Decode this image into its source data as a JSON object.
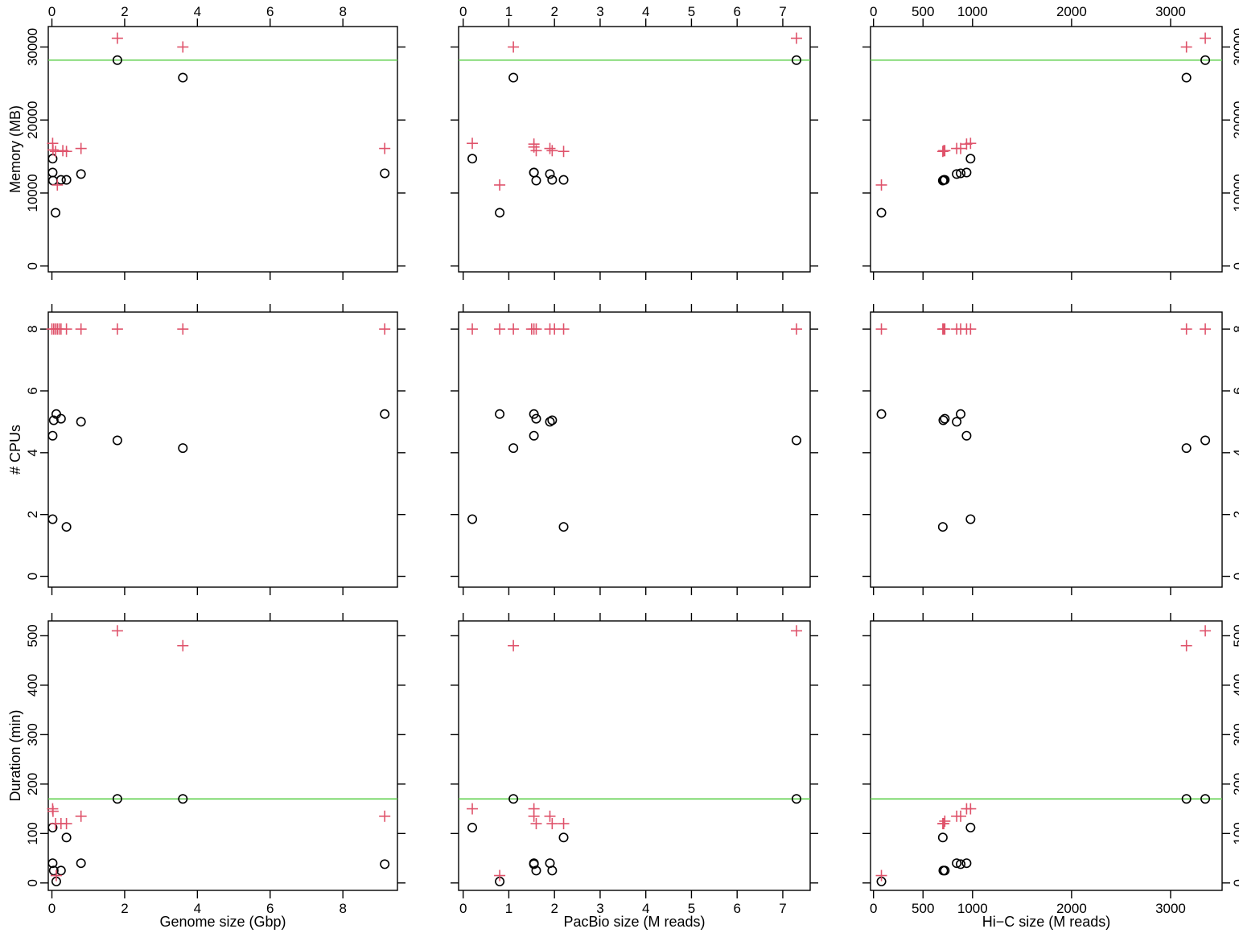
{
  "colors": {
    "circle": "#000000",
    "plus": "#DF536B",
    "refline": "#61D04F"
  },
  "chart_data": [
    {
      "type": "scatter",
      "row": "memory",
      "col": "genome",
      "ylabel": "Memory (MB)",
      "xlabel": "",
      "xticks": [
        0,
        2,
        4,
        6,
        8
      ],
      "yticks": [
        0,
        10000,
        20000,
        30000
      ],
      "xlim": [
        -0.1,
        9.5
      ],
      "ylim": [
        -800,
        32800
      ],
      "hline": 28200,
      "series": [
        {
          "marker": "circle",
          "x": [
            0.02,
            0.02,
            0.03,
            0.1,
            0.25,
            0.4,
            0.8,
            1.8,
            3.6,
            9.15
          ],
          "y": [
            14700,
            12800,
            11700,
            7300,
            11800,
            11800,
            12600,
            28200,
            25800,
            12700
          ]
        },
        {
          "marker": "plus",
          "x": [
            0.02,
            0.03,
            0.1,
            0.15,
            0.3,
            0.4,
            0.8,
            1.8,
            3.6,
            9.15
          ],
          "y": [
            16800,
            15900,
            15700,
            11100,
            15800,
            15700,
            16100,
            31200,
            30000,
            16100
          ]
        }
      ]
    },
    {
      "type": "scatter",
      "row": "memory",
      "col": "pacbio",
      "ylabel": "",
      "xlabel": "",
      "xticks": [
        0,
        1,
        2,
        3,
        4,
        5,
        6,
        7
      ],
      "yticks": [
        0,
        10000,
        20000,
        30000
      ],
      "xlim": [
        -0.1,
        7.6
      ],
      "ylim": [
        -800,
        32800
      ],
      "hline": 28200,
      "series": [
        {
          "marker": "circle",
          "x": [
            0.2,
            0.8,
            1.1,
            1.55,
            1.55,
            1.6,
            1.9,
            1.95,
            2.2,
            7.3
          ],
          "y": [
            14700,
            7300,
            25800,
            12800,
            12800,
            11700,
            12600,
            11800,
            11800,
            28200
          ]
        },
        {
          "marker": "plus",
          "x": [
            0.2,
            0.8,
            1.1,
            1.55,
            1.55,
            1.6,
            1.9,
            1.95,
            2.2,
            7.3
          ],
          "y": [
            16800,
            11100,
            30000,
            16700,
            16300,
            15800,
            16100,
            15800,
            15700,
            31200
          ]
        }
      ]
    },
    {
      "type": "scatter",
      "row": "memory",
      "col": "hic",
      "ylabel": "",
      "xlabel": "",
      "xticks": [
        0,
        500,
        1000,
        2000,
        3000
      ],
      "yticks": [
        0,
        10000,
        20000,
        30000
      ],
      "xlim": [
        -30,
        3520
      ],
      "ylim": [
        -800,
        32800
      ],
      "hline": 28200,
      "series": [
        {
          "marker": "circle",
          "x": [
            80,
            700,
            710,
            720,
            840,
            880,
            940,
            980,
            3160,
            3350
          ],
          "y": [
            7300,
            11700,
            11800,
            11800,
            12600,
            12700,
            12800,
            14700,
            25800,
            28200
          ]
        },
        {
          "marker": "plus",
          "x": [
            80,
            700,
            710,
            720,
            840,
            880,
            940,
            980,
            3160,
            3350
          ],
          "y": [
            11100,
            15700,
            15800,
            15800,
            16100,
            16100,
            16700,
            16800,
            30000,
            31200
          ]
        }
      ]
    },
    {
      "type": "scatter",
      "row": "cpus",
      "col": "genome",
      "ylabel": "# CPUs",
      "xlabel": "",
      "xticks": [
        0,
        2,
        4,
        6,
        8
      ],
      "yticks": [
        0,
        2,
        4,
        6,
        8
      ],
      "xlim": [
        -0.1,
        9.5
      ],
      "ylim": [
        -0.35,
        8.55
      ],
      "series": [
        {
          "marker": "circle",
          "x": [
            0.02,
            0.02,
            0.05,
            0.12,
            0.25,
            0.4,
            0.8,
            1.8,
            3.6,
            9.15
          ],
          "y": [
            1.85,
            4.55,
            5.05,
            5.25,
            5.1,
            1.6,
            5.0,
            4.4,
            4.15,
            5.25
          ]
        },
        {
          "marker": "plus",
          "x": [
            0.0,
            0.05,
            0.1,
            0.15,
            0.2,
            0.25,
            0.4,
            0.8,
            1.8,
            3.6,
            9.15
          ],
          "y": [
            8,
            8,
            8,
            8,
            8,
            8,
            8,
            8,
            8,
            8,
            8
          ]
        }
      ]
    },
    {
      "type": "scatter",
      "row": "cpus",
      "col": "pacbio",
      "ylabel": "",
      "xlabel": "",
      "xticks": [
        0,
        1,
        2,
        3,
        4,
        5,
        6,
        7
      ],
      "yticks": [
        0,
        2,
        4,
        6,
        8
      ],
      "xlim": [
        -0.1,
        7.6
      ],
      "ylim": [
        -0.35,
        8.55
      ],
      "series": [
        {
          "marker": "circle",
          "x": [
            0.2,
            0.8,
            1.1,
            1.55,
            1.55,
            1.6,
            1.9,
            1.95,
            2.2,
            7.3
          ],
          "y": [
            1.85,
            5.25,
            4.15,
            5.25,
            4.55,
            5.1,
            5.0,
            5.05,
            1.6,
            4.4
          ]
        },
        {
          "marker": "plus",
          "x": [
            0.2,
            0.8,
            1.1,
            1.5,
            1.55,
            1.6,
            1.9,
            2.0,
            2.2,
            7.3
          ],
          "y": [
            8,
            8,
            8,
            8,
            8,
            8,
            8,
            8,
            8,
            8
          ]
        }
      ]
    },
    {
      "type": "scatter",
      "row": "cpus",
      "col": "hic",
      "ylabel": "",
      "xlabel": "",
      "xticks": [
        0,
        500,
        1000,
        2000,
        3000
      ],
      "yticks": [
        0,
        2,
        4,
        6,
        8
      ],
      "xlim": [
        -30,
        3520
      ],
      "ylim": [
        -0.35,
        8.55
      ],
      "series": [
        {
          "marker": "circle",
          "x": [
            80,
            700,
            705,
            720,
            840,
            880,
            940,
            980,
            3160,
            3350
          ],
          "y": [
            5.25,
            1.6,
            5.05,
            5.1,
            5.0,
            5.25,
            4.55,
            1.85,
            4.15,
            4.4
          ]
        },
        {
          "marker": "plus",
          "x": [
            80,
            700,
            710,
            720,
            840,
            880,
            940,
            980,
            3160,
            3350
          ],
          "y": [
            8,
            8,
            8,
            8,
            8,
            8,
            8,
            8,
            8,
            8
          ]
        }
      ]
    },
    {
      "type": "scatter",
      "row": "duration",
      "col": "genome",
      "ylabel": "Duration (min)",
      "xlabel": "Genome size (Gbp)",
      "xticks": [
        0,
        2,
        4,
        6,
        8
      ],
      "yticks": [
        0,
        100,
        200,
        300,
        400,
        500
      ],
      "xlim": [
        -0.1,
        9.5
      ],
      "ylim": [
        -15,
        530
      ],
      "hline": 170,
      "series": [
        {
          "marker": "circle",
          "x": [
            0.02,
            0.02,
            0.05,
            0.12,
            0.25,
            0.4,
            0.8,
            1.8,
            3.6,
            9.15
          ],
          "y": [
            112,
            40,
            25,
            3,
            25,
            92,
            40,
            170,
            170,
            38
          ]
        },
        {
          "marker": "plus",
          "x": [
            0.02,
            0.03,
            0.1,
            0.12,
            0.25,
            0.4,
            0.8,
            1.8,
            3.6,
            9.15
          ],
          "y": [
            150,
            145,
            120,
            15,
            120,
            120,
            135,
            510,
            480,
            135
          ]
        }
      ]
    },
    {
      "type": "scatter",
      "row": "duration",
      "col": "pacbio",
      "ylabel": "",
      "xlabel": "PacBio size (M reads)",
      "xticks": [
        0,
        1,
        2,
        3,
        4,
        5,
        6,
        7
      ],
      "yticks": [
        0,
        100,
        200,
        300,
        400,
        500
      ],
      "xlim": [
        -0.1,
        7.6
      ],
      "ylim": [
        -15,
        530
      ],
      "hline": 170,
      "series": [
        {
          "marker": "circle",
          "x": [
            0.2,
            0.8,
            1.1,
            1.55,
            1.55,
            1.6,
            1.9,
            1.95,
            2.2,
            7.3
          ],
          "y": [
            112,
            3,
            170,
            40,
            38,
            25,
            40,
            25,
            92,
            170
          ]
        },
        {
          "marker": "plus",
          "x": [
            0.2,
            0.8,
            1.1,
            1.55,
            1.55,
            1.6,
            1.9,
            1.95,
            2.2,
            7.3
          ],
          "y": [
            150,
            15,
            480,
            150,
            135,
            120,
            135,
            120,
            120,
            510
          ]
        }
      ]
    },
    {
      "type": "scatter",
      "row": "duration",
      "col": "hic",
      "ylabel": "",
      "xlabel": "Hi−C size (M reads)",
      "xticks": [
        0,
        500,
        1000,
        2000,
        3000
      ],
      "yticks": [
        0,
        100,
        200,
        300,
        400,
        500
      ],
      "xlim": [
        -30,
        3520
      ],
      "ylim": [
        -15,
        530
      ],
      "hline": 170,
      "series": [
        {
          "marker": "circle",
          "x": [
            80,
            700,
            705,
            720,
            840,
            880,
            940,
            980,
            3160,
            3350
          ],
          "y": [
            3,
            92,
            25,
            25,
            40,
            38,
            40,
            112,
            170,
            170
          ]
        },
        {
          "marker": "plus",
          "x": [
            80,
            700,
            710,
            720,
            840,
            880,
            940,
            980,
            3160,
            3350
          ],
          "y": [
            15,
            120,
            120,
            125,
            135,
            135,
            150,
            150,
            480,
            510
          ]
        }
      ]
    }
  ]
}
